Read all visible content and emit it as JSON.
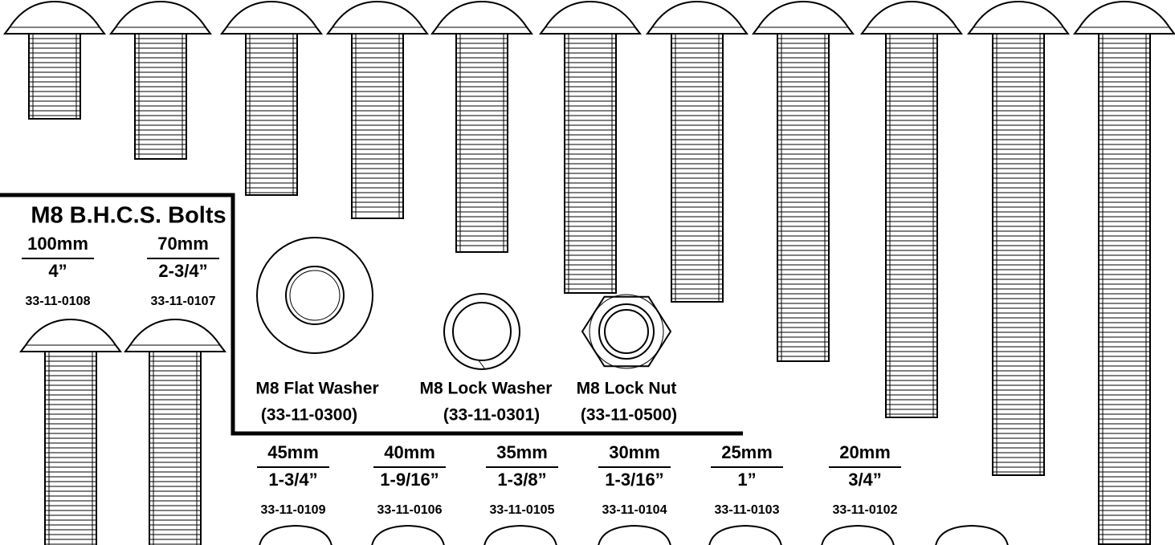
{
  "title": "M8 B.H.C.S. Bolts",
  "bolts": [
    {
      "length_mm": "100mm",
      "length_in": "4”",
      "part": "33-11-0108"
    },
    {
      "length_mm": "70mm",
      "length_in": "2-3/4”",
      "part": "33-11-0107"
    },
    {
      "length_mm": "45mm",
      "length_in": "1-3/4”",
      "part": "33-11-0109"
    },
    {
      "length_mm": "40mm",
      "length_in": "1-9/16”",
      "part": "33-11-0106"
    },
    {
      "length_mm": "35mm",
      "length_in": "1-3/8”",
      "part": "33-11-0105"
    },
    {
      "length_mm": "30mm",
      "length_in": "1-3/16”",
      "part": "33-11-0104"
    },
    {
      "length_mm": "25mm",
      "length_in": "1”",
      "part": "33-11-0103"
    },
    {
      "length_mm": "20mm",
      "length_in": "3/4”",
      "part": "33-11-0102"
    }
  ],
  "hardware": [
    {
      "name": "M8 Flat Washer",
      "part": "(33-11-0300)"
    },
    {
      "name": "M8 Lock Washer",
      "part": "(33-11-0301)"
    },
    {
      "name": "M8 Lock Nut",
      "part": "(33-11-0500)"
    }
  ]
}
